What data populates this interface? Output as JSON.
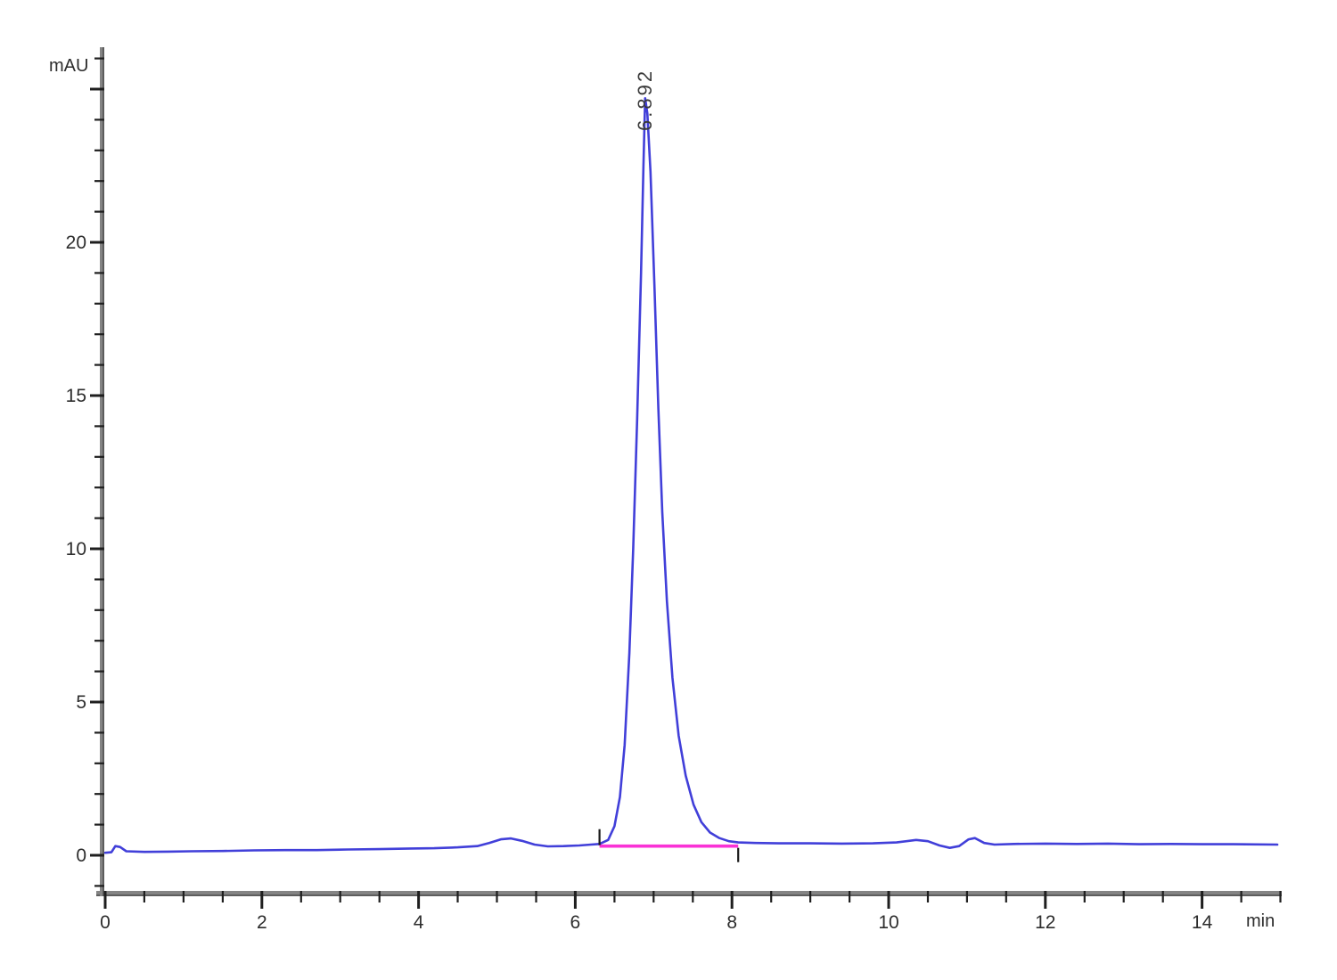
{
  "window": {
    "description": "HPLC chromatogram plot"
  },
  "colors": {
    "trace": "#413fd9",
    "baseline": "#fa32d6",
    "axis_bar": "#848484",
    "tick": "#1f1f1f",
    "tick_label": "#2d2d2d",
    "peak_label": "#3a3a3a",
    "background": "#ffffff"
  },
  "chart_data": {
    "type": "line",
    "title": "",
    "ylabel": "mAU",
    "xlabel_unit": "min",
    "xlim": [
      0,
      15.0
    ],
    "ylim": [
      -1.3,
      26.3
    ],
    "grid": false,
    "legend": "none",
    "x_labeled_ticks": [
      0,
      2,
      4,
      6,
      8,
      10,
      12,
      14
    ],
    "x_minor_tick_step": 0.5,
    "y_labeled_ticks": [
      0,
      5,
      10,
      15,
      20
    ],
    "y_major_ticks": [
      0,
      5,
      10,
      15,
      20,
      25
    ],
    "y_minor_tick_step": 1,
    "series": [
      {
        "name": "uv-absorbance-signal",
        "color": "#413fd9",
        "points": [
          [
            0.0,
            0.08
          ],
          [
            0.08,
            0.1
          ],
          [
            0.13,
            0.3
          ],
          [
            0.19,
            0.27
          ],
          [
            0.27,
            0.13
          ],
          [
            0.5,
            0.11
          ],
          [
            0.8,
            0.12
          ],
          [
            1.1,
            0.13
          ],
          [
            1.5,
            0.14
          ],
          [
            1.9,
            0.16
          ],
          [
            2.3,
            0.17
          ],
          [
            2.7,
            0.17
          ],
          [
            3.1,
            0.19
          ],
          [
            3.5,
            0.2
          ],
          [
            3.9,
            0.22
          ],
          [
            4.2,
            0.23
          ],
          [
            4.5,
            0.26
          ],
          [
            4.75,
            0.3
          ],
          [
            4.9,
            0.4
          ],
          [
            5.05,
            0.52
          ],
          [
            5.18,
            0.55
          ],
          [
            5.32,
            0.47
          ],
          [
            5.48,
            0.35
          ],
          [
            5.65,
            0.29
          ],
          [
            5.85,
            0.3
          ],
          [
            6.05,
            0.32
          ],
          [
            6.2,
            0.35
          ],
          [
            6.31,
            0.37
          ],
          [
            6.42,
            0.5
          ],
          [
            6.5,
            0.95
          ],
          [
            6.57,
            1.9
          ],
          [
            6.63,
            3.6
          ],
          [
            6.69,
            6.6
          ],
          [
            6.74,
            10.0
          ],
          [
            6.79,
            14.2
          ],
          [
            6.84,
            19.0
          ],
          [
            6.87,
            22.5
          ],
          [
            6.892,
            24.7
          ],
          [
            6.92,
            24.2
          ],
          [
            6.96,
            22.3
          ],
          [
            7.01,
            18.6
          ],
          [
            7.06,
            14.6
          ],
          [
            7.11,
            11.2
          ],
          [
            7.17,
            8.3
          ],
          [
            7.24,
            5.8
          ],
          [
            7.32,
            3.9
          ],
          [
            7.41,
            2.6
          ],
          [
            7.51,
            1.65
          ],
          [
            7.61,
            1.08
          ],
          [
            7.72,
            0.74
          ],
          [
            7.84,
            0.56
          ],
          [
            7.96,
            0.46
          ],
          [
            8.08,
            0.42
          ],
          [
            8.3,
            0.4
          ],
          [
            8.6,
            0.39
          ],
          [
            9.0,
            0.39
          ],
          [
            9.4,
            0.38
          ],
          [
            9.8,
            0.39
          ],
          [
            10.1,
            0.42
          ],
          [
            10.35,
            0.5
          ],
          [
            10.5,
            0.46
          ],
          [
            10.65,
            0.32
          ],
          [
            10.78,
            0.24
          ],
          [
            10.9,
            0.3
          ],
          [
            11.02,
            0.52
          ],
          [
            11.1,
            0.56
          ],
          [
            11.22,
            0.4
          ],
          [
            11.35,
            0.35
          ],
          [
            11.6,
            0.37
          ],
          [
            12.0,
            0.38
          ],
          [
            12.4,
            0.37
          ],
          [
            12.8,
            0.38
          ],
          [
            13.2,
            0.36
          ],
          [
            13.6,
            0.37
          ],
          [
            14.0,
            0.36
          ],
          [
            14.4,
            0.36
          ],
          [
            14.96,
            0.35
          ]
        ]
      }
    ],
    "baseline": {
      "name": "integration-baseline",
      "color": "#fa32d6",
      "start_time": 6.31,
      "end_time": 8.08,
      "value": 0.3
    },
    "integration_marks": [
      {
        "time": 6.31,
        "direction": "up"
      },
      {
        "time": 8.08,
        "direction": "down"
      }
    ],
    "peaks": [
      {
        "label": "6.892",
        "retention_time": 6.892,
        "height_mau": 24.7
      }
    ]
  }
}
